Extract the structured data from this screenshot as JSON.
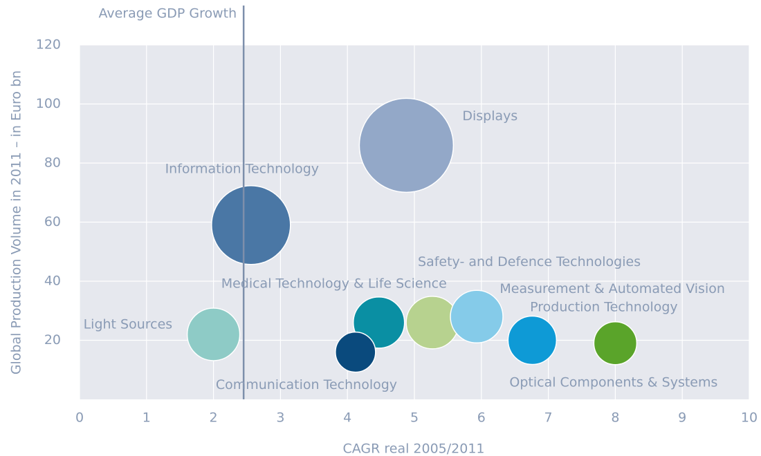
{
  "chart_data": {
    "type": "bubble",
    "x_label": "CAGR real 2005/2011",
    "y_label": "Global Production Volume in 2011 – in Euro bn",
    "xlim": [
      0,
      10
    ],
    "xticks": [
      0,
      1,
      2,
      3,
      4,
      5,
      6,
      7,
      8,
      9,
      10
    ],
    "ylim": [
      0,
      120
    ],
    "yticks": [
      20,
      40,
      60,
      80,
      100,
      120
    ],
    "grid": true,
    "reference_line": {
      "label": "Average GDP Growth",
      "x": 2.45
    },
    "points": [
      {
        "name": "Light Sources",
        "color": "#8ecbc6",
        "x": 2.0,
        "y": 22,
        "size": 38
      },
      {
        "name": "Information Technology",
        "color": "#4a77a5",
        "x": 2.56,
        "y": 59,
        "size": 57
      },
      {
        "name": "Displays",
        "color": "#93a8c8",
        "x": 4.88,
        "y": 86,
        "size": 68
      },
      {
        "name": "Medical Technology & Life Science",
        "color": "#0a8fa3",
        "x": 4.47,
        "y": 26,
        "size": 37
      },
      {
        "name": "Communication Technology",
        "color": "#0a4a7d",
        "x": 4.12,
        "y": 16,
        "size": 29
      },
      {
        "name": "Production Technology",
        "color": "#b7d28f",
        "x": 5.27,
        "y": 26,
        "size": 38
      },
      {
        "name": "Safety- and Defence Technologies",
        "color": "#85cbe9",
        "x": 5.93,
        "y": 28,
        "size": 38
      },
      {
        "name": "Measurement & Automated Vision",
        "color": "#0e9ad6",
        "x": 6.76,
        "y": 20,
        "size": 35
      },
      {
        "name": "Optical Components & Systems",
        "color": "#5aa42a",
        "x": 8.0,
        "y": 19,
        "size": 31
      }
    ]
  }
}
